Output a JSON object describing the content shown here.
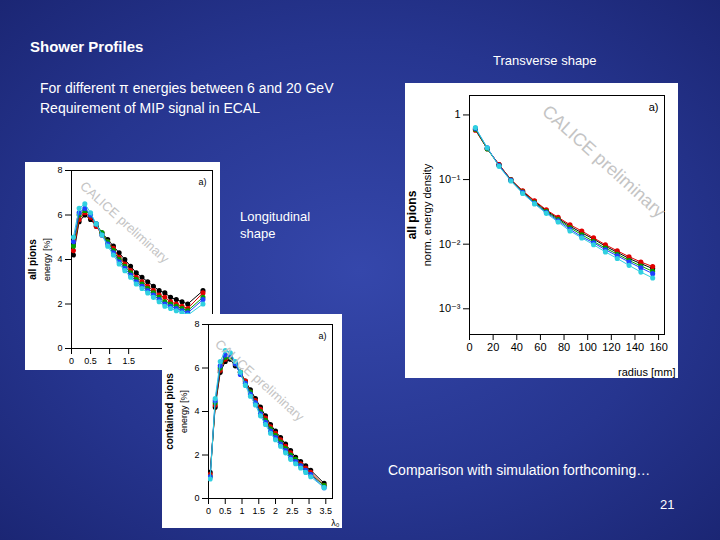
{
  "slide": {
    "title": "Shower Profiles",
    "subtitle": [
      "For different π energies between 6 and 20 GeV",
      "Requirement of MIP signal in ECAL"
    ],
    "transverse_label": "Transverse shape",
    "longitudinal_label": "Longitudinal shape",
    "footer": "Comparison with simulation forthcoming…",
    "page": "21"
  },
  "chart_data": [
    {
      "type": "line",
      "marker": "circle",
      "ylabel": "energy [%]",
      "ylabel_group": "all pions",
      "annotations": [
        "a)",
        "CALICE preliminary"
      ],
      "xlim": [
        0,
        3.7
      ],
      "xticks": [
        0,
        0.5,
        1,
        1.5
      ],
      "ylim": [
        0,
        8
      ],
      "yticks": [
        0,
        2,
        4,
        6,
        8
      ],
      "x": [
        0.05,
        0.2,
        0.35,
        0.5,
        0.65,
        0.8,
        0.95,
        1.1,
        1.25,
        1.4,
        1.55,
        1.7,
        1.85,
        2.0,
        2.15,
        2.3,
        2.45,
        2.6,
        2.75,
        2.9,
        3.05,
        3.45
      ],
      "series": [
        {
          "color": "#000000",
          "values": [
            4.2,
            5.7,
            6.0,
            5.8,
            5.5,
            5.2,
            4.9,
            4.6,
            4.3,
            4.0,
            3.7,
            3.4,
            3.2,
            3.0,
            2.8,
            2.6,
            2.5,
            2.3,
            2.2,
            2.1,
            2.0,
            2.6
          ]
        },
        {
          "color": "#e00000",
          "values": [
            4.4,
            5.8,
            6.1,
            5.9,
            5.5,
            5.1,
            4.8,
            4.5,
            4.1,
            3.8,
            3.5,
            3.2,
            3.0,
            2.8,
            2.6,
            2.4,
            2.3,
            2.1,
            2.0,
            1.9,
            1.8,
            2.5
          ]
        },
        {
          "color": "#00a000",
          "values": [
            4.6,
            6.0,
            6.2,
            6.0,
            5.6,
            5.2,
            4.8,
            4.4,
            4.0,
            3.7,
            3.4,
            3.1,
            2.9,
            2.7,
            2.5,
            2.3,
            2.1,
            2.0,
            1.9,
            1.8,
            1.7,
            2.3
          ]
        },
        {
          "color": "#2040ff",
          "values": [
            4.8,
            6.1,
            6.3,
            6.0,
            5.6,
            5.1,
            4.7,
            4.3,
            3.9,
            3.6,
            3.3,
            3.0,
            2.8,
            2.6,
            2.4,
            2.2,
            2.0,
            1.9,
            1.8,
            1.7,
            1.6,
            2.2
          ]
        },
        {
          "color": "#30d0e0",
          "values": [
            5.0,
            6.3,
            6.5,
            6.1,
            5.6,
            5.1,
            4.6,
            4.2,
            3.8,
            3.5,
            3.2,
            2.9,
            2.7,
            2.5,
            2.3,
            2.1,
            1.9,
            1.8,
            1.7,
            1.6,
            1.5,
            2.0
          ]
        }
      ]
    },
    {
      "type": "line",
      "marker": "circle",
      "xlabel": "λ₀",
      "ylabel": "energy [%]",
      "ylabel_group": "contained pions",
      "annotations": [
        "a)",
        "CALICE preliminary"
      ],
      "xlim": [
        0,
        3.7
      ],
      "xticks": [
        0,
        0.5,
        1,
        1.5,
        2,
        2.5,
        3,
        3.5
      ],
      "ylim": [
        0,
        8
      ],
      "yticks": [
        0,
        2,
        4,
        6,
        8
      ],
      "x": [
        0.05,
        0.2,
        0.35,
        0.5,
        0.65,
        0.8,
        0.95,
        1.1,
        1.25,
        1.4,
        1.55,
        1.7,
        1.85,
        2.0,
        2.15,
        2.3,
        2.45,
        2.6,
        2.75,
        2.9,
        3.05,
        3.45
      ],
      "series": [
        {
          "color": "#000000",
          "values": [
            1.2,
            4.2,
            5.8,
            6.3,
            6.4,
            6.1,
            5.8,
            5.4,
            5.0,
            4.6,
            4.2,
            3.8,
            3.4,
            3.1,
            2.8,
            2.5,
            2.2,
            1.9,
            1.7,
            1.5,
            1.3,
            0.7
          ]
        },
        {
          "color": "#e00000",
          "values": [
            1.1,
            4.3,
            5.9,
            6.4,
            6.5,
            6.2,
            5.8,
            5.4,
            4.9,
            4.5,
            4.1,
            3.7,
            3.3,
            3.0,
            2.7,
            2.4,
            2.1,
            1.8,
            1.6,
            1.4,
            1.2,
            0.6
          ]
        },
        {
          "color": "#00a000",
          "values": [
            1.0,
            4.4,
            6.0,
            6.5,
            6.5,
            6.2,
            5.8,
            5.3,
            4.9,
            4.4,
            4.0,
            3.6,
            3.2,
            2.9,
            2.6,
            2.3,
            2.0,
            1.8,
            1.5,
            1.3,
            1.1,
            0.6
          ]
        },
        {
          "color": "#2040ff",
          "values": [
            1.0,
            4.5,
            6.1,
            6.6,
            6.6,
            6.2,
            5.7,
            5.3,
            4.8,
            4.4,
            3.9,
            3.5,
            3.1,
            2.8,
            2.5,
            2.2,
            1.9,
            1.7,
            1.5,
            1.3,
            1.1,
            0.5
          ]
        },
        {
          "color": "#30d0e0",
          "values": [
            0.9,
            4.6,
            6.3,
            6.8,
            6.7,
            6.3,
            5.8,
            5.2,
            4.7,
            4.3,
            3.8,
            3.4,
            3.0,
            2.7,
            2.4,
            2.1,
            1.8,
            1.6,
            1.4,
            1.2,
            1.0,
            0.5
          ]
        }
      ]
    },
    {
      "type": "line",
      "marker": "circle",
      "log": "y",
      "xlabel": "radius [mm]",
      "ylabel": "norm. energy density",
      "ylabel_group": "all pions",
      "annotations": [
        "a)",
        "CALICE preliminary"
      ],
      "xlim": [
        0,
        165
      ],
      "xticks": [
        0,
        20,
        40,
        60,
        80,
        100,
        120,
        140,
        160
      ],
      "ylim": [
        0.0004,
        2
      ],
      "yticks": [
        1,
        {
          "value": 0.1,
          "label": "10⁻¹"
        },
        {
          "value": 0.01,
          "label": "10⁻²"
        },
        {
          "value": 0.001,
          "label": "10⁻³"
        }
      ],
      "x": [
        5,
        15,
        25,
        35,
        45,
        55,
        65,
        75,
        85,
        95,
        105,
        115,
        125,
        135,
        145,
        155
      ],
      "series": [
        {
          "color": "#000000",
          "values": [
            0.6,
            0.3,
            0.17,
            0.1,
            0.066,
            0.046,
            0.033,
            0.025,
            0.019,
            0.015,
            0.012,
            0.0093,
            0.0075,
            0.006,
            0.005,
            0.0042
          ]
        },
        {
          "color": "#e00000",
          "values": [
            0.58,
            0.3,
            0.17,
            0.1,
            0.067,
            0.047,
            0.034,
            0.026,
            0.02,
            0.016,
            0.0125,
            0.0098,
            0.0079,
            0.0064,
            0.0053,
            0.0045
          ]
        },
        {
          "color": "#00a000",
          "values": [
            0.6,
            0.3,
            0.165,
            0.098,
            0.064,
            0.044,
            0.032,
            0.024,
            0.018,
            0.014,
            0.011,
            0.0087,
            0.007,
            0.0056,
            0.0046,
            0.0038
          ]
        },
        {
          "color": "#2040ff",
          "values": [
            0.62,
            0.31,
            0.165,
            0.097,
            0.063,
            0.043,
            0.031,
            0.023,
            0.017,
            0.013,
            0.0105,
            0.0082,
            0.0066,
            0.0053,
            0.0043,
            0.0035
          ]
        },
        {
          "color": "#30d0e0",
          "values": [
            0.64,
            0.31,
            0.16,
            0.095,
            0.061,
            0.042,
            0.03,
            0.022,
            0.016,
            0.0125,
            0.0098,
            0.0076,
            0.006,
            0.0047,
            0.0037,
            0.003
          ]
        }
      ]
    }
  ]
}
